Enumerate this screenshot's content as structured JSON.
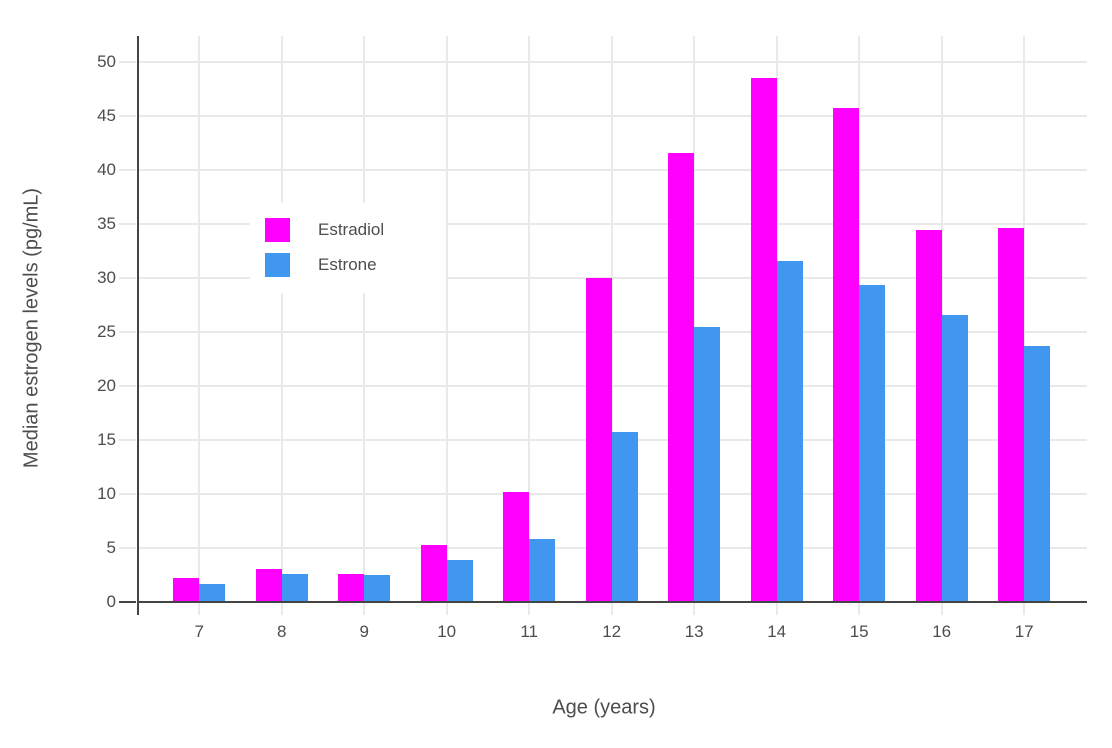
{
  "chart_data": {
    "type": "bar",
    "title": "",
    "xlabel": "Age (years)",
    "ylabel": "Median estrogen levels (pg/mL)",
    "categories": [
      "7",
      "8",
      "9",
      "10",
      "11",
      "12",
      "13",
      "14",
      "15",
      "16",
      "17"
    ],
    "series": [
      {
        "name": "Estradiol",
        "color": "#FF00FF",
        "values": [
          2.2,
          3.0,
          2.6,
          5.3,
          10.2,
          30.0,
          41.6,
          48.5,
          45.8,
          34.5,
          34.6
        ]
      },
      {
        "name": "Estrone",
        "color": "#4197F0",
        "values": [
          1.6,
          2.6,
          2.5,
          3.9,
          5.8,
          15.7,
          25.5,
          31.6,
          29.4,
          26.6,
          23.7
        ]
      }
    ],
    "ylim": [
      0,
      50
    ],
    "yticks": [
      0,
      5,
      10,
      15,
      20,
      25,
      30,
      35,
      40,
      45,
      50
    ],
    "grid": true,
    "legend_position": "inside-top-left",
    "colors": {
      "grid": "#E9E9E9",
      "axis_line": "#444444",
      "text": "#4D4D4D",
      "plot_background": "#FFFFFF"
    }
  }
}
